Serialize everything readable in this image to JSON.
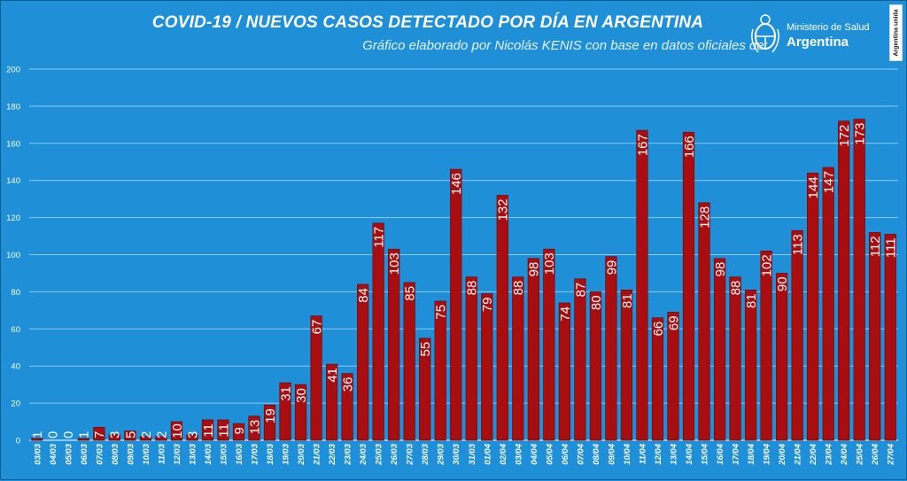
{
  "header": {
    "title": "COVID-19  /  NUEVOS CASOS DETECTADO POR DÍA EN ARGENTINA",
    "subtitle": "Gráfico elaborado por Nicolás KENIS con base en datos oficiales de:",
    "logo_line1": "Ministerio de Salud",
    "logo_line2": "Argentina",
    "badge": "Argentina unida"
  },
  "colors": {
    "background": "#1f8fd8",
    "bar": "#a80e10",
    "bar_border": "#6a0406",
    "grid": "#8ccbf3",
    "text": "#ffffff"
  },
  "chart_data": {
    "type": "bar",
    "title": "COVID-19  /  NUEVOS CASOS DETECTADO POR DÍA EN ARGENTINA",
    "xlabel": "",
    "ylabel": "",
    "ylim": [
      0,
      200
    ],
    "yticks": [
      0,
      20,
      40,
      60,
      80,
      100,
      120,
      140,
      160,
      180,
      200
    ],
    "grid": true,
    "legend": "none",
    "categories": [
      "03/03",
      "04/03",
      "05/03",
      "06/03",
      "07/03",
      "08/03",
      "09/03",
      "10/03",
      "11/03",
      "12/03",
      "13/03",
      "14/03",
      "15/03",
      "16/03",
      "17/03",
      "18/03",
      "19/03",
      "20/03",
      "21/03",
      "22/03",
      "23/03",
      "24/03",
      "25/03",
      "26/03",
      "27/03",
      "28/03",
      "29/03",
      "30/03",
      "31/03",
      "01/04",
      "02/04",
      "03/04",
      "04/04",
      "05/04",
      "06/04",
      "07/04",
      "08/04",
      "09/04",
      "10/04",
      "11/04",
      "12/04",
      "13/04",
      "14/04",
      "15/04",
      "16/04",
      "17/04",
      "18/04",
      "19/04",
      "20/04",
      "21/04",
      "22/04",
      "23/04",
      "24/04",
      "25/04",
      "26/04",
      "27/04"
    ],
    "values": [
      1,
      0,
      0,
      1,
      7,
      3,
      5,
      2,
      2,
      10,
      3,
      11,
      11,
      9,
      13,
      19,
      31,
      30,
      67,
      41,
      36,
      84,
      117,
      103,
      85,
      55,
      75,
      146,
      88,
      79,
      132,
      88,
      98,
      103,
      74,
      87,
      80,
      99,
      81,
      167,
      66,
      69,
      166,
      128,
      98,
      88,
      81,
      102,
      90,
      113,
      144,
      147,
      172,
      173,
      112,
      111
    ]
  }
}
